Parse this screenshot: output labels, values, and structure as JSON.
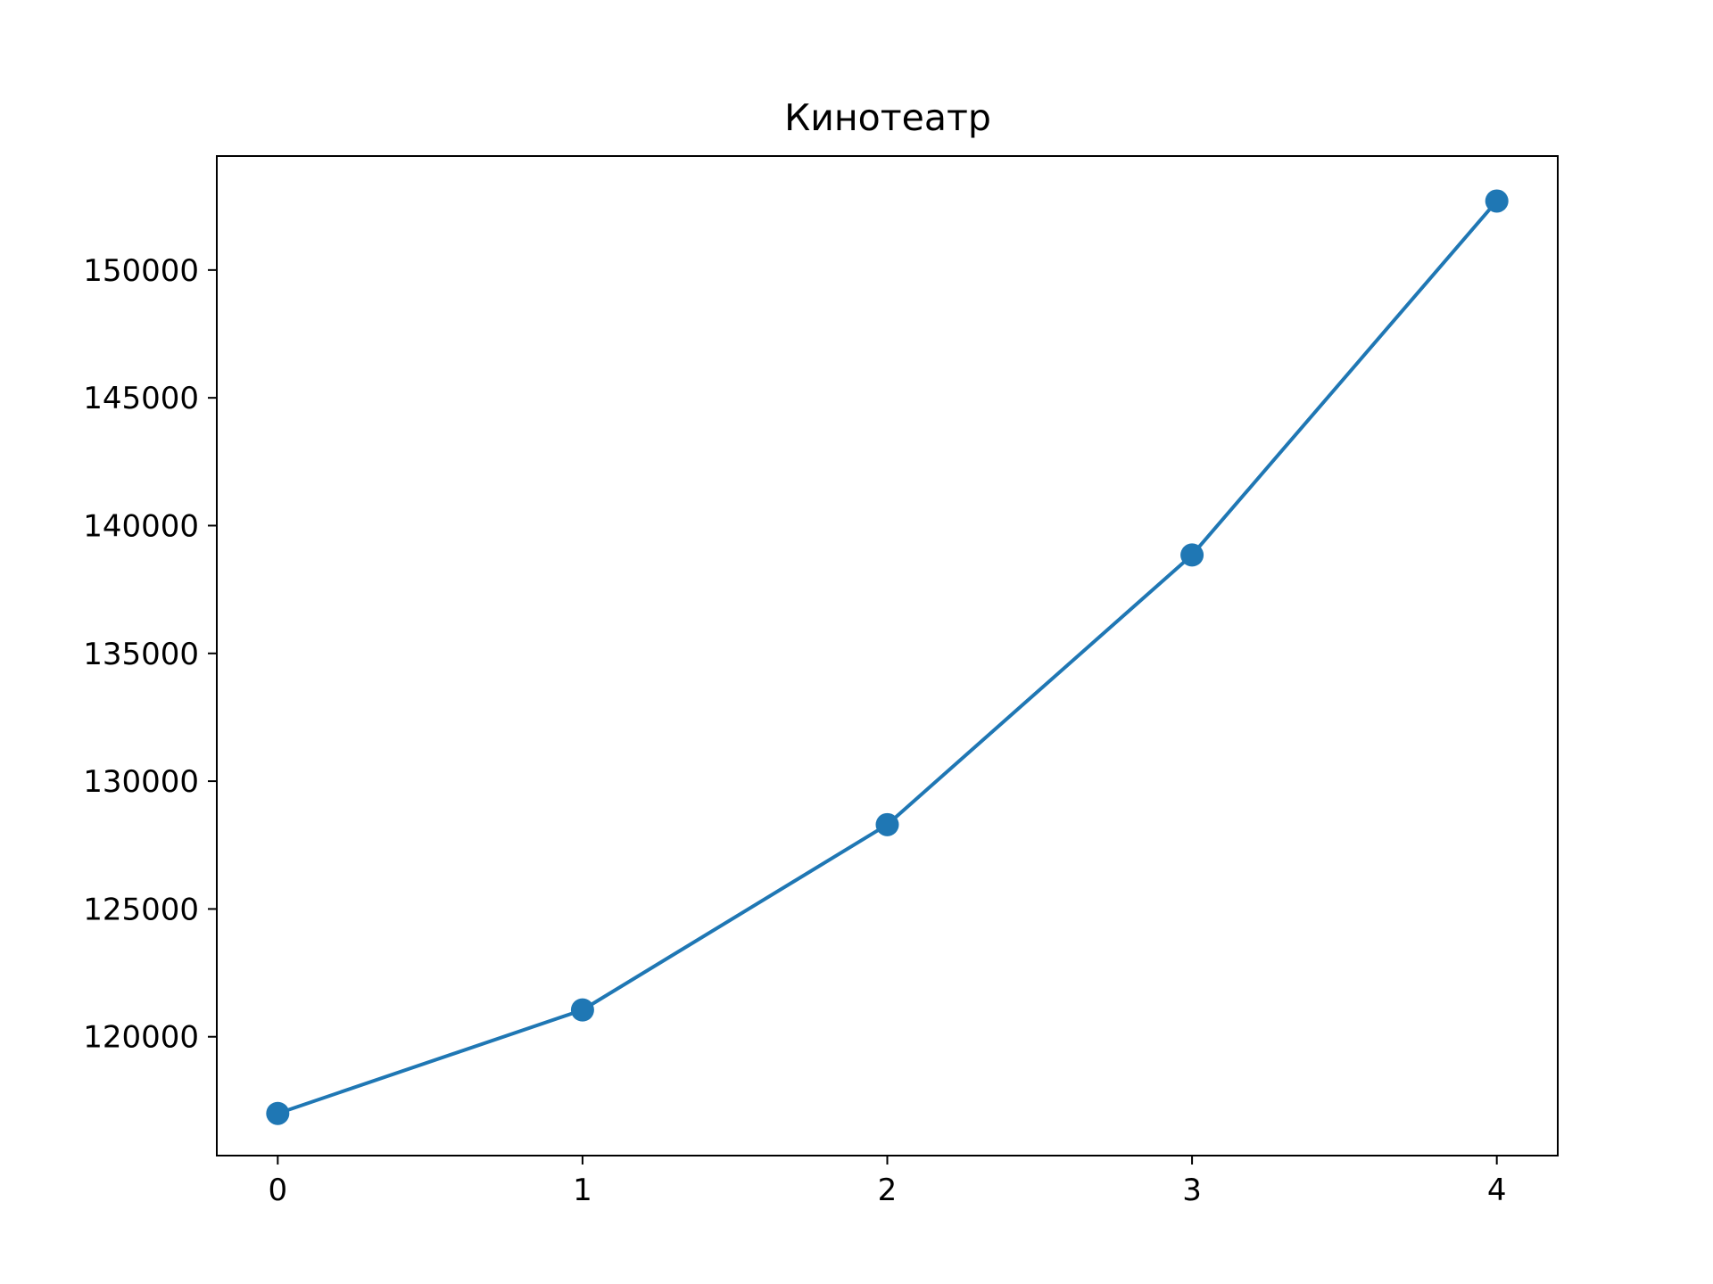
{
  "chart_data": {
    "type": "line",
    "title": "Кинотеатр",
    "xlabel": "",
    "ylabel": "",
    "x": [
      0,
      1,
      2,
      3,
      4
    ],
    "series": [
      {
        "values": [
          117000,
          121050,
          128300,
          138850,
          152700
        ],
        "color": "#1f77b4",
        "marker": "circle"
      }
    ],
    "xlim": [
      -0.2,
      4.2
    ],
    "ylim": [
      115350,
      154460
    ],
    "x_ticks": [
      0,
      1,
      2,
      3,
      4
    ],
    "x_tick_labels": [
      "0",
      "1",
      "2",
      "3",
      "4"
    ],
    "y_ticks": [
      120000,
      125000,
      130000,
      135000,
      140000,
      145000,
      150000
    ],
    "y_tick_labels": [
      "120000",
      "125000",
      "130000",
      "135000",
      "140000",
      "145000",
      "150000"
    ],
    "grid": false,
    "legend": "none"
  }
}
